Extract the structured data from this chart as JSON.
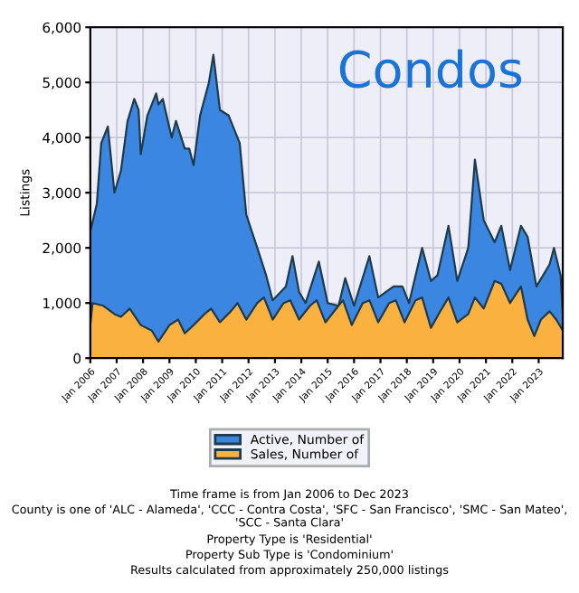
{
  "chart_data": {
    "type": "area",
    "title": "Condos",
    "ylabel": "Listings",
    "series": [
      {
        "name": "Active, Number of",
        "color": "#3a86e0",
        "x": [
          "2006-01",
          "2006-04",
          "2006-06",
          "2006-09",
          "2006-12",
          "2007-03",
          "2007-06",
          "2007-09",
          "2007-11",
          "2007-12",
          "2008-03",
          "2008-07",
          "2008-08",
          "2008-10",
          "2009-02",
          "2009-04",
          "2009-08",
          "2009-10",
          "2009-12",
          "2010-03",
          "2010-07",
          "2010-09",
          "2010-12",
          "2011-04",
          "2011-09",
          "2011-12",
          "2012-05",
          "2012-09",
          "2012-12",
          "2013-06",
          "2013-09",
          "2013-12",
          "2014-03",
          "2014-09",
          "2015-01",
          "2015-06",
          "2015-09",
          "2016-01",
          "2016-08",
          "2016-12",
          "2017-07",
          "2017-11",
          "2018-02",
          "2018-08",
          "2018-12",
          "2019-03",
          "2019-08",
          "2019-12",
          "2020-05",
          "2020-08",
          "2020-12",
          "2021-05",
          "2021-08",
          "2021-12",
          "2022-05",
          "2022-08",
          "2022-12",
          "2023-06",
          "2023-08",
          "2023-11",
          "2023-12"
        ],
        "values": [
          2300,
          2800,
          3900,
          4200,
          3000,
          3400,
          4300,
          4700,
          4500,
          3700,
          4400,
          4800,
          4600,
          4700,
          4000,
          4300,
          3800,
          3800,
          3500,
          4400,
          5000,
          5500,
          4500,
          4400,
          3900,
          2600,
          2000,
          1500,
          1050,
          1300,
          1850,
          1200,
          1000,
          1750,
          1000,
          950,
          1450,
          950,
          1850,
          1100,
          1300,
          1300,
          1000,
          2000,
          1400,
          1500,
          2400,
          1400,
          2000,
          3600,
          2500,
          2100,
          2400,
          1600,
          2400,
          2200,
          1300,
          1700,
          2000,
          1500,
          800
        ]
      },
      {
        "name": "Sales, Number of",
        "color": "#fbb140",
        "x": [
          "2006-01",
          "2006-02",
          "2006-07",
          "2006-12",
          "2007-03",
          "2007-07",
          "2007-12",
          "2008-05",
          "2008-08",
          "2009-01",
          "2009-05",
          "2009-08",
          "2009-12",
          "2010-05",
          "2010-08",
          "2010-12",
          "2011-05",
          "2011-08",
          "2011-12",
          "2012-05",
          "2012-08",
          "2012-12",
          "2013-05",
          "2013-08",
          "2013-12",
          "2014-05",
          "2014-08",
          "2014-12",
          "2015-05",
          "2015-08",
          "2015-12",
          "2016-05",
          "2016-08",
          "2016-12",
          "2017-05",
          "2017-08",
          "2017-12",
          "2018-05",
          "2018-08",
          "2018-12",
          "2019-05",
          "2019-08",
          "2019-12",
          "2020-05",
          "2020-08",
          "2020-12",
          "2021-05",
          "2021-08",
          "2021-12",
          "2022-05",
          "2022-08",
          "2022-11",
          "2023-02",
          "2023-06",
          "2023-09",
          "2023-12"
        ],
        "values": [
          600,
          1000,
          950,
          800,
          750,
          900,
          600,
          500,
          300,
          600,
          700,
          450,
          600,
          800,
          900,
          650,
          850,
          1000,
          700,
          1000,
          1100,
          700,
          1000,
          1050,
          700,
          950,
          1050,
          650,
          900,
          1050,
          600,
          1000,
          1050,
          650,
          1000,
          1050,
          650,
          1050,
          1100,
          550,
          900,
          1100,
          650,
          800,
          1100,
          900,
          1400,
          1350,
          1000,
          1300,
          700,
          400,
          700,
          850,
          700,
          500
        ]
      }
    ],
    "xlim": [
      "2006-01",
      "2023-12"
    ],
    "xticks": [
      {
        "value": "2006-01",
        "label": "Jan 2006"
      },
      {
        "value": "2007-01",
        "label": "Jan 2007"
      },
      {
        "value": "2008-01",
        "label": "Jan 2008"
      },
      {
        "value": "2009-01",
        "label": "Jan 2009"
      },
      {
        "value": "2010-01",
        "label": "Jan 2010"
      },
      {
        "value": "2011-01",
        "label": "Jan 2011"
      },
      {
        "value": "2012-01",
        "label": "Jan 2012"
      },
      {
        "value": "2013-01",
        "label": "Jan 2013"
      },
      {
        "value": "2014-01",
        "label": "Jan 2014"
      },
      {
        "value": "2015-01",
        "label": "Jan 2015"
      },
      {
        "value": "2016-01",
        "label": "Jan 2016"
      },
      {
        "value": "2017-01",
        "label": "Jan 2017"
      },
      {
        "value": "2018-01",
        "label": "Jan 2018"
      },
      {
        "value": "2019-01",
        "label": "Jan 2019"
      },
      {
        "value": "2020-01",
        "label": "Jan 2020"
      },
      {
        "value": "2021-01",
        "label": "Jan 2021"
      },
      {
        "value": "2022-01",
        "label": "Jan 2022"
      },
      {
        "value": "2023-01",
        "label": "Jan 2023"
      }
    ],
    "ylim": [
      0,
      6000
    ],
    "yticks": [
      {
        "value": 0,
        "label": "0"
      },
      {
        "value": 1000,
        "label": "1,000"
      },
      {
        "value": 2000,
        "label": "2,000"
      },
      {
        "value": 3000,
        "label": "3,000"
      },
      {
        "value": 4000,
        "label": "4,000"
      },
      {
        "value": 5000,
        "label": "5,000"
      },
      {
        "value": 6000,
        "label": "6,000"
      }
    ],
    "grid": true,
    "legend": "bottom",
    "annotations": [
      "Time frame is from Jan 2006 to Dec 2023",
      "County is one of 'ALC - Alameda', 'CCC - Contra Costa', 'SFC - San Francisco', 'SMC - San Mateo', 'SCC - Santa Clara'",
      "Property Type is 'Residential'",
      "Property Sub Type is 'Condominium'",
      "Results calculated from approximately 250,000 listings"
    ]
  }
}
